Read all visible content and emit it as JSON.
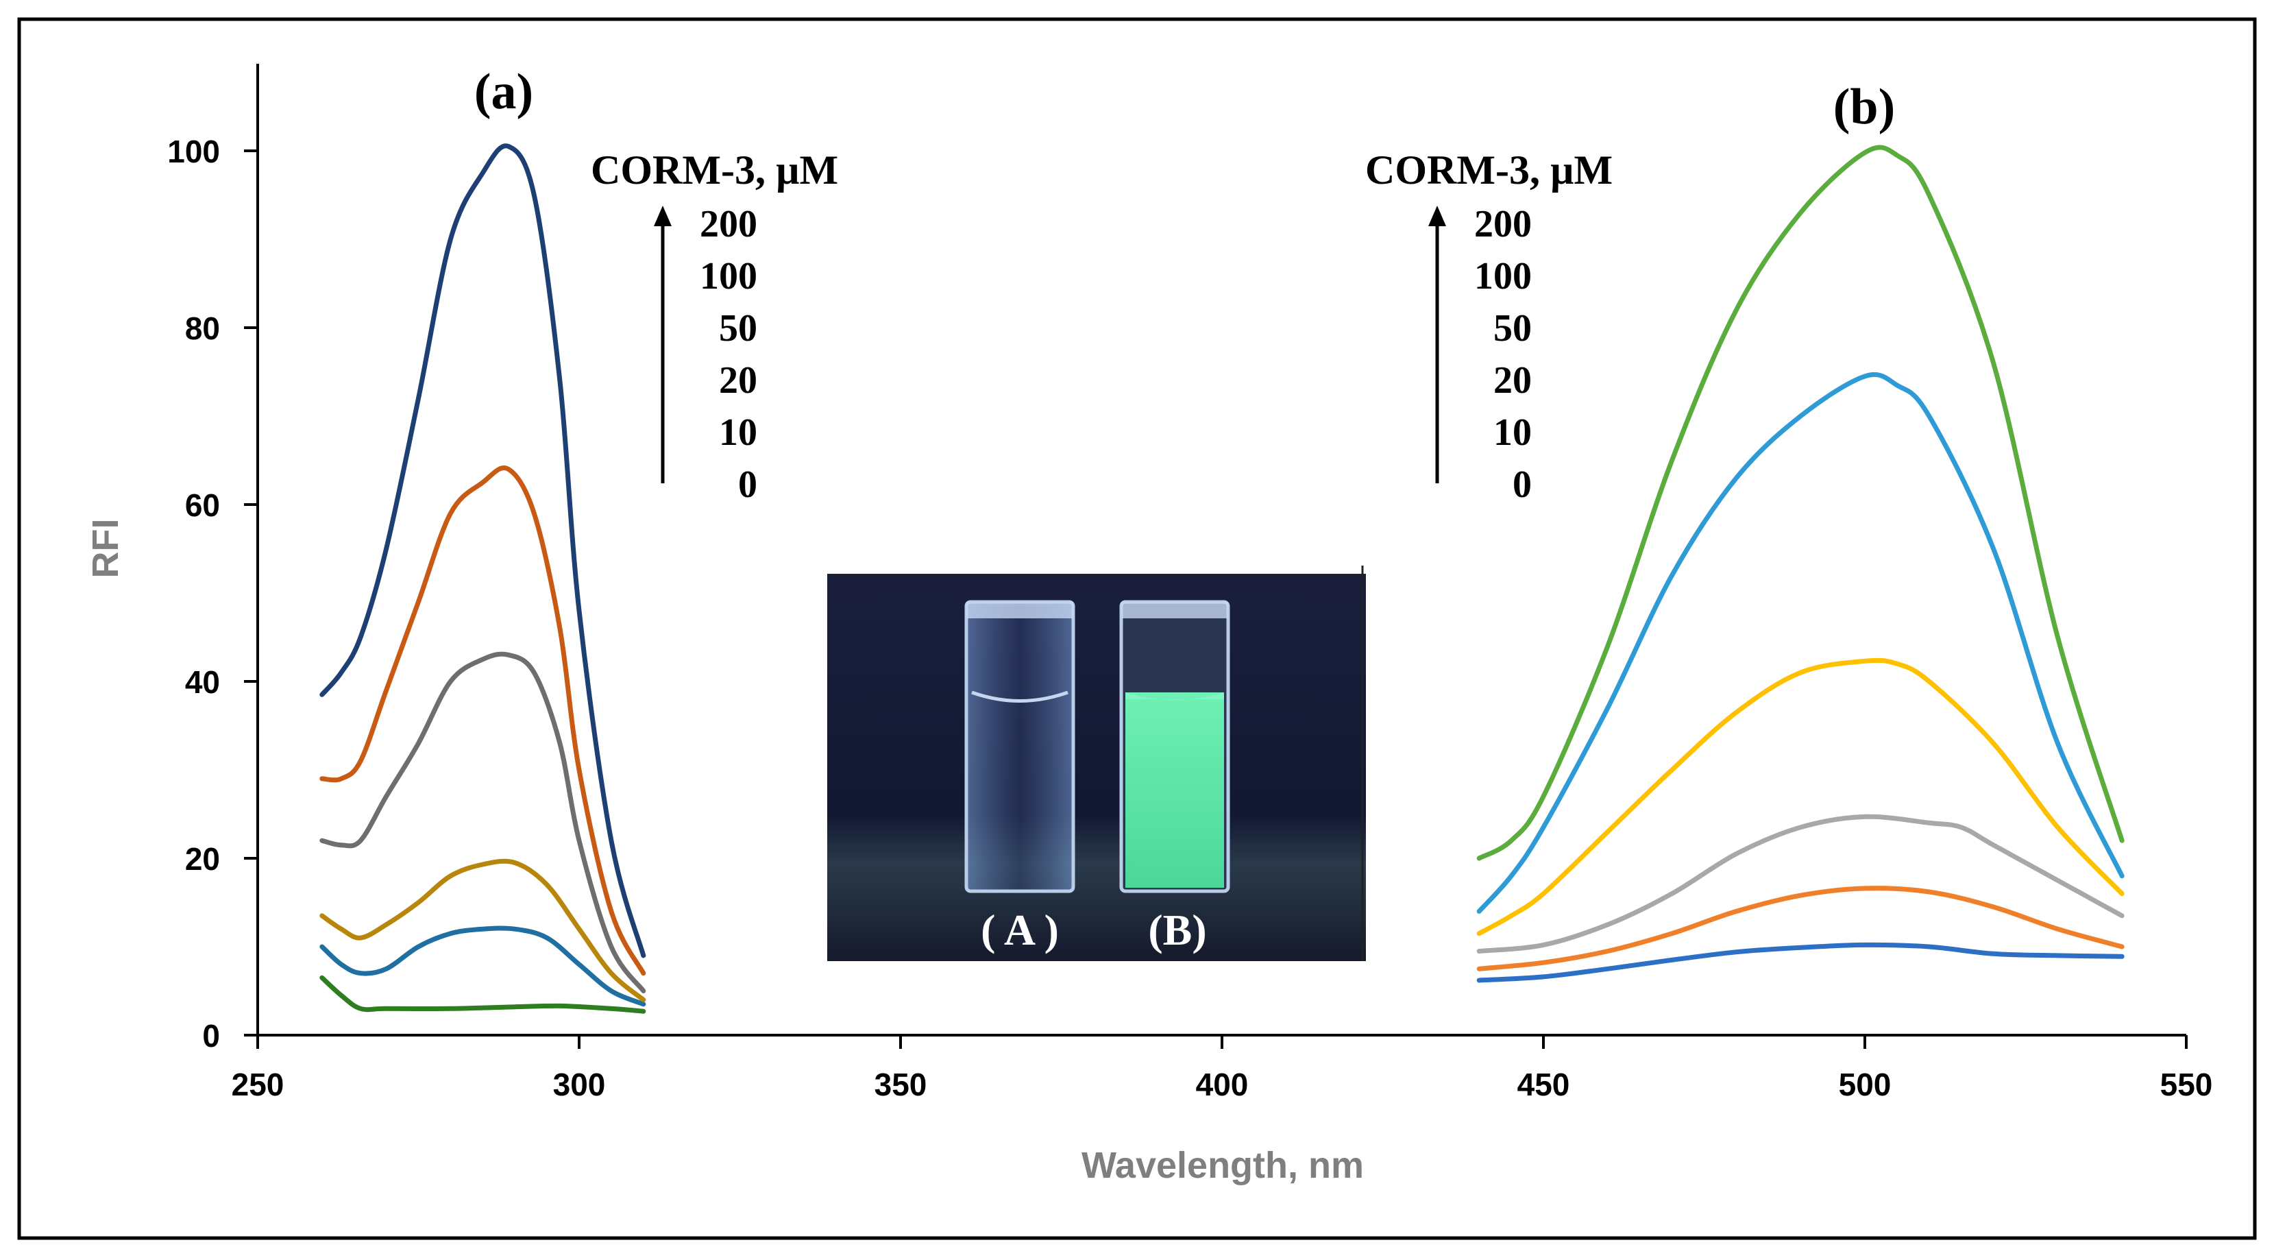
{
  "chart_data": {
    "type": "line",
    "xlabel": "Wavelength, nm",
    "ylabel": "RFI",
    "xlim": [
      250,
      550
    ],
    "ylim": [
      0,
      110
    ],
    "xticks": [
      250,
      300,
      350,
      400,
      450,
      500,
      550
    ],
    "yticks": [
      0,
      20,
      40,
      60,
      80,
      100
    ],
    "panels": [
      {
        "label": "(a)",
        "legend_title": "CORM-3, µM",
        "legend_entries": [
          "200",
          "100",
          "50",
          "20",
          "10",
          "0"
        ],
        "series": [
          {
            "name": "0",
            "color": "#2e7d1f",
            "x": [
              260,
              263,
              266,
              270,
              280,
              290,
              297,
              305,
              310
            ],
            "y": [
              6.5,
              4.5,
              3.0,
              3.0,
              3.0,
              3.2,
              3.3,
              3.0,
              2.7
            ]
          },
          {
            "name": "10",
            "color": "#1f6fa3",
            "x": [
              260,
              263,
              266,
              270,
              275,
              280,
              285,
              290,
              295,
              300,
              305,
              310
            ],
            "y": [
              10,
              8,
              7,
              7.5,
              10,
              11.5,
              12,
              12,
              11,
              8,
              5,
              3.5
            ]
          },
          {
            "name": "20",
            "color": "#b8860b",
            "x": [
              260,
              263,
              266,
              270,
              275,
              280,
              285,
              290,
              295,
              300,
              305,
              310
            ],
            "y": [
              13.5,
              12,
              11,
              12.5,
              15,
              18,
              19.3,
              19.5,
              17,
              12,
              7,
              4
            ]
          },
          {
            "name": "50",
            "color": "#6e6e6e",
            "x": [
              260,
              263,
              266,
              270,
              275,
              280,
              285,
              289,
              293,
              297,
              300,
              305,
              310
            ],
            "y": [
              22,
              21.5,
              22,
              27,
              33,
              40,
              42.5,
              43,
              41,
              33,
              22,
              10,
              5
            ]
          },
          {
            "name": "100",
            "color": "#c85a14",
            "x": [
              260,
              263,
              266,
              270,
              275,
              280,
              285,
              289,
              293,
              297,
              300,
              305,
              310
            ],
            "y": [
              29,
              29,
              31,
              39,
              49,
              59,
              62.5,
              64,
              59,
              46,
              30,
              14,
              7
            ]
          },
          {
            "name": "200",
            "color": "#1d3f73",
            "x": [
              260,
              263,
              266,
              270,
              275,
              280,
              285,
              289,
              293,
              297,
              300,
              305,
              310
            ],
            "y": [
              38.5,
              41,
              45,
              55,
              72,
              90,
              97.5,
              100.5,
              95,
              74,
              48,
              22,
              9
            ]
          }
        ]
      },
      {
        "label": "(b)",
        "legend_title": "CORM-3, µM",
        "legend_entries": [
          "200",
          "100",
          "50",
          "20",
          "10",
          "0"
        ],
        "series": [
          {
            "name": "0",
            "color": "#2c6fc4",
            "x": [
              440,
              450,
              460,
              470,
              480,
              490,
              500,
              510,
              520,
              530,
              540
            ],
            "y": [
              6.2,
              6.6,
              7.5,
              8.5,
              9.4,
              9.9,
              10.2,
              10.0,
              9.2,
              9.0,
              8.9
            ]
          },
          {
            "name": "10",
            "color": "#f07f2a",
            "x": [
              440,
              450,
              460,
              470,
              480,
              490,
              500,
              510,
              520,
              530,
              540
            ],
            "y": [
              7.5,
              8.2,
              9.5,
              11.5,
              14,
              15.8,
              16.6,
              16.2,
              14.5,
              12,
              10
            ]
          },
          {
            "name": "20",
            "color": "#a8a8a8",
            "x": [
              440,
              450,
              460,
              470,
              480,
              490,
              500,
              510,
              515,
              520,
              530,
              540
            ],
            "y": [
              9.5,
              10.2,
              12.5,
              16,
              20.5,
              23.5,
              24.7,
              24,
              23.5,
              21.5,
              17.5,
              13.5
            ]
          },
          {
            "name": "50",
            "color": "#ffc000",
            "x": [
              440,
              445,
              450,
              460,
              470,
              480,
              490,
              500,
              505,
              510,
              520,
              530,
              540
            ],
            "y": [
              11.5,
              13.5,
              16,
              23,
              30,
              36.5,
              41,
              42.3,
              42,
              40,
              33,
              23.5,
              16
            ]
          },
          {
            "name": "100",
            "color": "#2e9bd6",
            "x": [
              440,
              445,
              450,
              460,
              470,
              480,
              490,
              500,
              505,
              510,
              520,
              530,
              540
            ],
            "y": [
              14,
              18,
              23.5,
              37,
              52,
              63,
              70,
              74.5,
              73.5,
              70,
              55,
              33,
              18
            ]
          },
          {
            "name": "200",
            "color": "#5aac3d",
            "x": [
              440,
              445,
              450,
              460,
              470,
              480,
              490,
              500,
              505,
              510,
              520,
              530,
              540
            ],
            "y": [
              20,
              22,
              27,
              44,
              65,
              82,
              93,
              99.8,
              99.5,
              95,
              76,
              45,
              22
            ]
          }
        ]
      }
    ],
    "inset": {
      "description_labels": [
        "( A )",
        "(B)"
      ],
      "cuvette_colors": [
        "#b9cde8",
        "#63e3a6"
      ],
      "background": "#161b33"
    }
  }
}
